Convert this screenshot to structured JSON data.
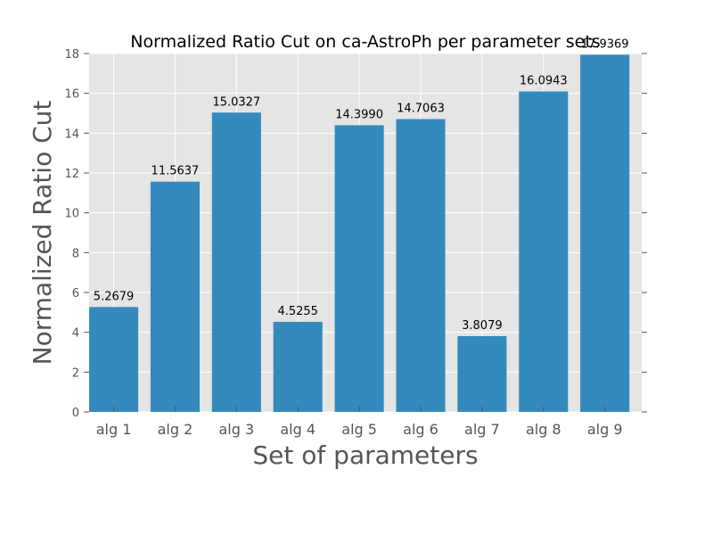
{
  "chart_data": {
    "type": "bar",
    "title": "Normalized Ratio Cut on ca-AstroPh per parameter sets",
    "xlabel": "Set of parameters",
    "ylabel": "Normalized Ratio Cut",
    "categories": [
      "alg 1",
      "alg 2",
      "alg 3",
      "alg 4",
      "alg 5",
      "alg 6",
      "alg 7",
      "alg 8",
      "alg 9"
    ],
    "values": [
      5.2679,
      11.5637,
      15.0327,
      4.5255,
      14.399,
      14.7063,
      3.8079,
      16.0943,
      17.9369
    ],
    "value_labels": [
      "5.2679",
      "11.5637",
      "15.0327",
      "4.5255",
      "14.3990",
      "14.7063",
      "3.8079",
      "16.0943",
      "17.9369"
    ],
    "ylim": [
      0,
      18
    ],
    "yticks": [
      "0",
      "2",
      "4",
      "6",
      "8",
      "10",
      "12",
      "14",
      "16",
      "18"
    ],
    "grid": true,
    "colors": {
      "bar": "#348ABD",
      "plot_background": "#E5E5E5",
      "grid": "#FFFFFF",
      "tick_text": "#555555"
    }
  }
}
